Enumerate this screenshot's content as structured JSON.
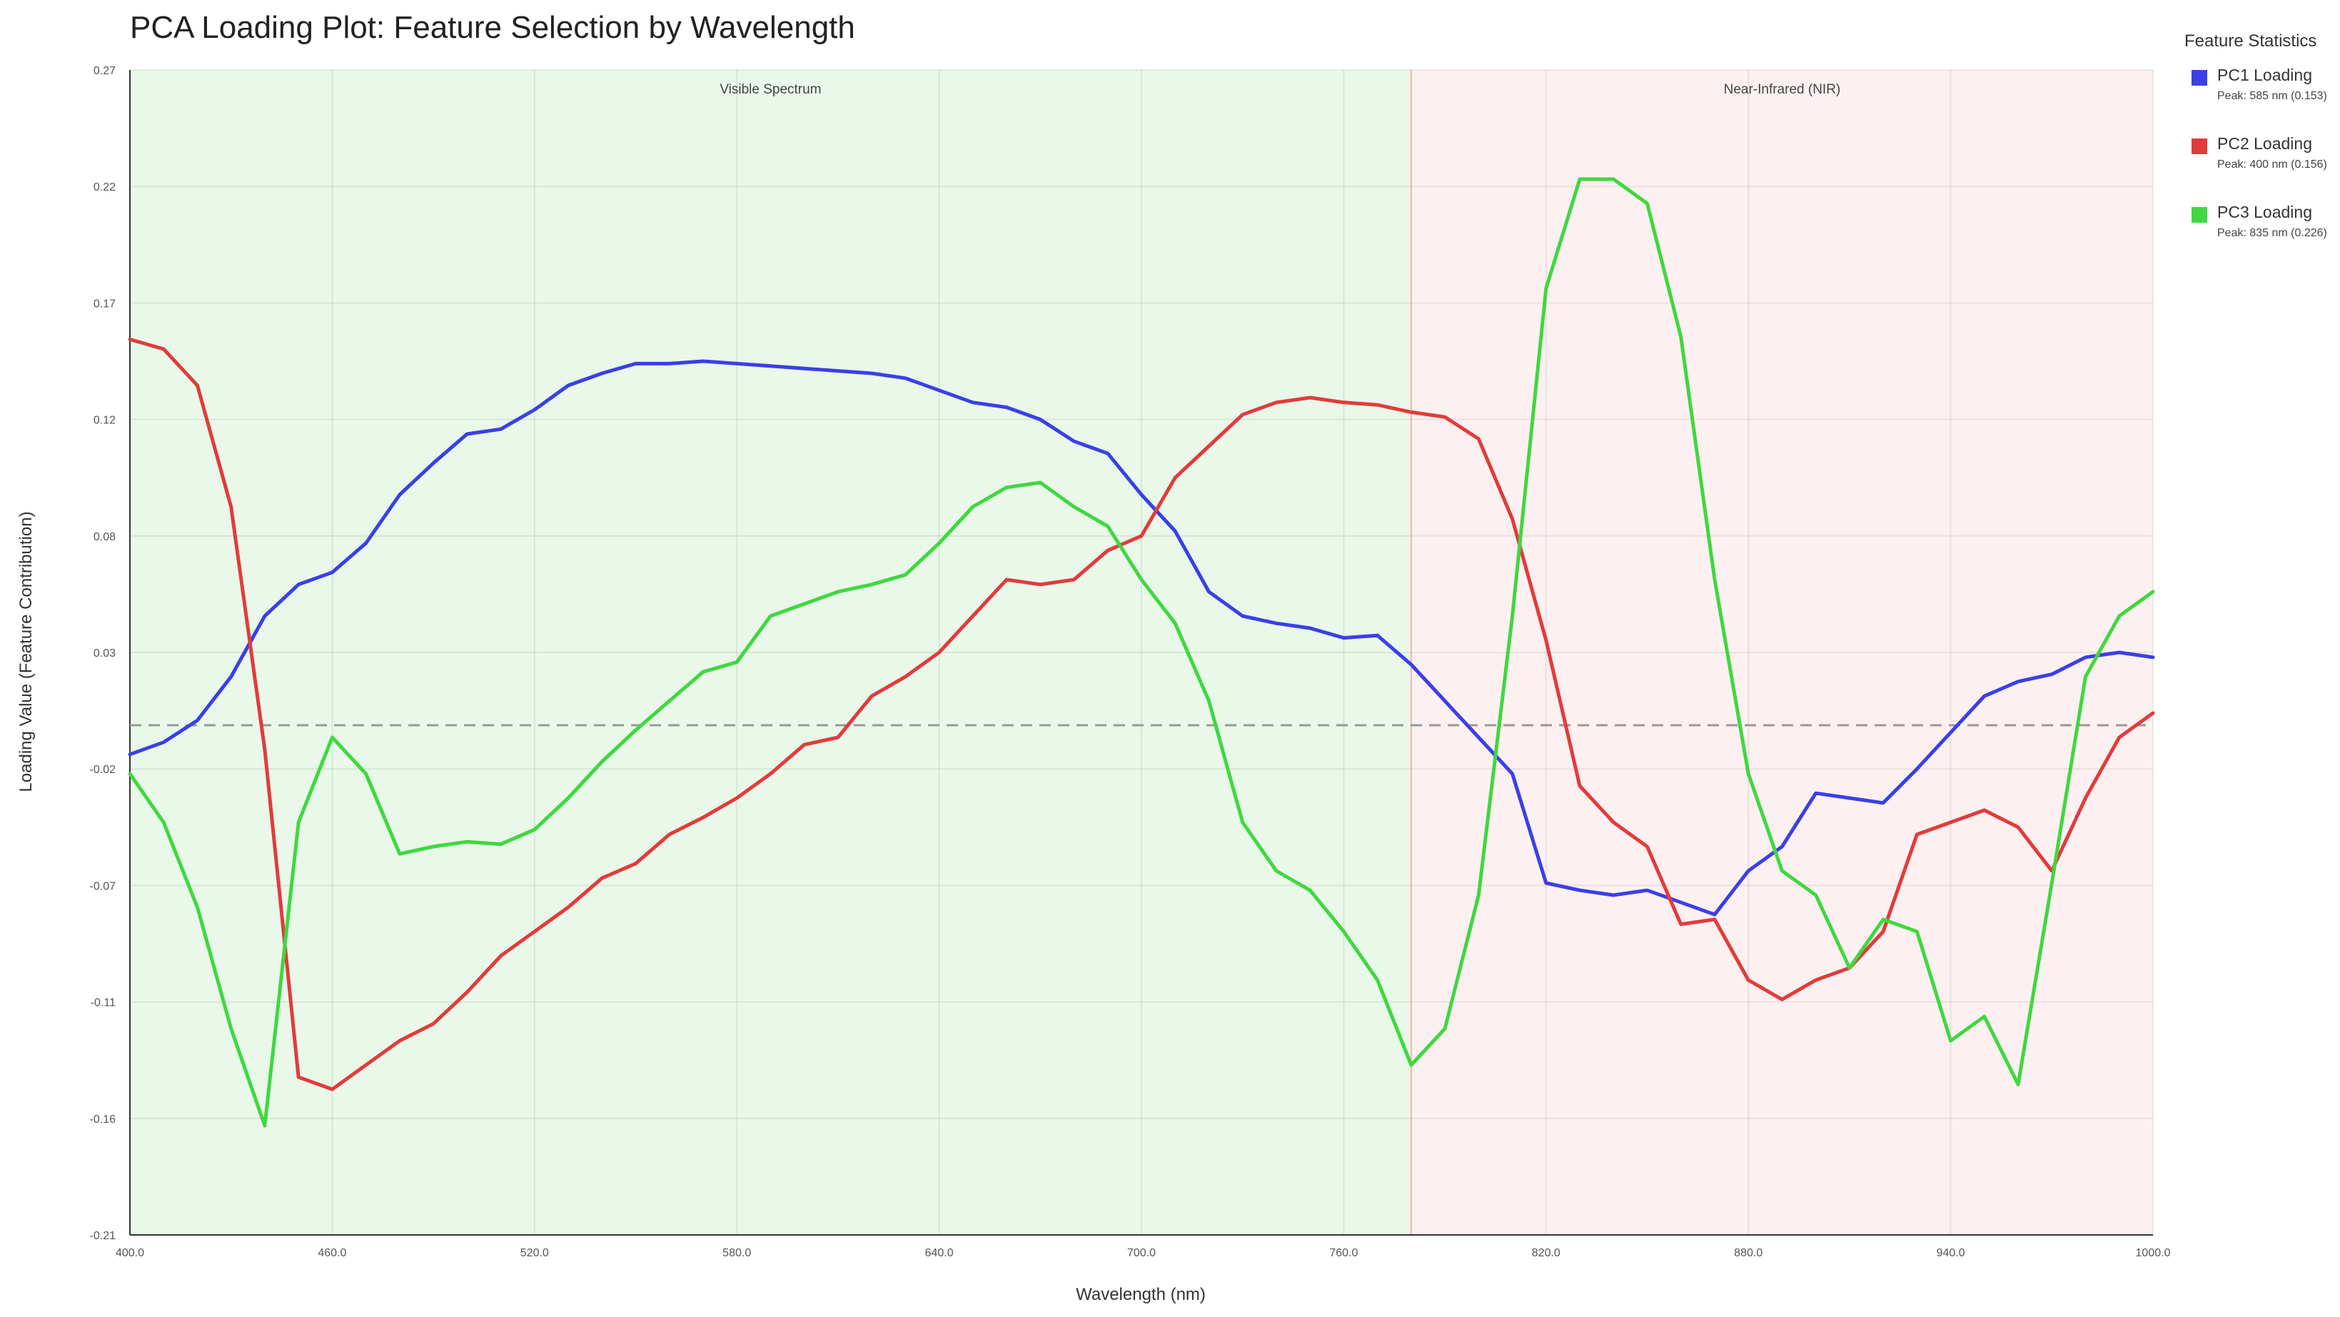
{
  "chart_data": {
    "type": "line",
    "title": "PCA Loading Plot: Feature Selection by Wavelength",
    "xlabel": "Wavelength (nm)",
    "ylabel": "Loading Value (Feature Contribution)",
    "xlim": [
      400,
      1000
    ],
    "ylim": [
      -0.21,
      0.27
    ],
    "x_ticks": [
      "400.0",
      "460.0",
      "520.0",
      "580.0",
      "640.0",
      "700.0",
      "760.0",
      "820.0",
      "880.0",
      "940.0",
      "1000.0"
    ],
    "y_ticks": [
      "0.27",
      "0.22",
      "0.17",
      "0.12",
      "0.08",
      "0.03",
      "-0.02",
      "-0.07",
      "-0.11",
      "-0.16",
      "-0.21"
    ],
    "grid": true,
    "legend_position": "right",
    "regions": [
      {
        "label": "Visible Spectrum",
        "x_start": 400,
        "x_end": 780,
        "color": "#e9f8e9"
      },
      {
        "label": "Near-Infrared (NIR)",
        "x_start": 780,
        "x_end": 1000,
        "color": "#fdf0f1"
      }
    ],
    "reference_line": {
      "y": 0.0,
      "style": "dashed"
    },
    "x": [
      400,
      410,
      420,
      430,
      440,
      450,
      460,
      470,
      480,
      490,
      500,
      510,
      520,
      530,
      540,
      550,
      560,
      570,
      580,
      590,
      600,
      610,
      620,
      630,
      640,
      650,
      660,
      670,
      680,
      690,
      700,
      710,
      720,
      730,
      740,
      750,
      760,
      770,
      780,
      790,
      800,
      810,
      820,
      830,
      840,
      850,
      860,
      870,
      880,
      890,
      900,
      910,
      920,
      930,
      940,
      950,
      960,
      970,
      980,
      990,
      1000
    ],
    "series": [
      {
        "name": "PC1 Loading",
        "color": "#3b3fe6",
        "values": [
          -0.012,
          -0.007,
          0.002,
          0.02,
          0.045,
          0.058,
          0.063,
          0.075,
          0.095,
          0.108,
          0.12,
          0.122,
          0.13,
          0.14,
          0.145,
          0.149,
          0.149,
          0.15,
          0.149,
          0.148,
          0.147,
          0.146,
          0.145,
          0.143,
          0.138,
          0.133,
          0.131,
          0.126,
          0.117,
          0.112,
          0.095,
          0.08,
          0.055,
          0.045,
          0.042,
          0.04,
          0.036,
          0.037,
          0.025,
          0.01,
          -0.005,
          -0.02,
          -0.065,
          -0.068,
          -0.07,
          -0.068,
          -0.073,
          -0.078,
          -0.06,
          -0.05,
          -0.028,
          -0.03,
          -0.032,
          -0.018,
          -0.003,
          0.012,
          0.018,
          0.021,
          0.028,
          0.03,
          0.028
        ]
      },
      {
        "name": "PC2 Loading",
        "color": "#e23b3b",
        "values": [
          0.159,
          0.155,
          0.14,
          0.09,
          -0.01,
          -0.145,
          -0.15,
          -0.14,
          -0.13,
          -0.123,
          -0.11,
          -0.095,
          -0.085,
          -0.075,
          -0.063,
          -0.057,
          -0.045,
          -0.038,
          -0.03,
          -0.02,
          -0.008,
          -0.005,
          0.012,
          0.02,
          0.03,
          0.045,
          0.06,
          0.058,
          0.06,
          0.072,
          0.078,
          0.102,
          0.115,
          0.128,
          0.133,
          0.135,
          0.133,
          0.132,
          0.129,
          0.127,
          0.118,
          0.085,
          0.035,
          -0.025,
          -0.04,
          -0.05,
          -0.082,
          -0.08,
          -0.105,
          -0.113,
          -0.105,
          -0.1,
          -0.085,
          -0.045,
          -0.04,
          -0.035,
          -0.042,
          -0.06,
          -0.03,
          -0.005,
          0.005
        ]
      },
      {
        "name": "PC3 Loading",
        "color": "#3fd83f",
        "values": [
          -0.02,
          -0.04,
          -0.075,
          -0.125,
          -0.165,
          -0.04,
          -0.005,
          -0.02,
          -0.053,
          -0.05,
          -0.048,
          -0.049,
          -0.043,
          -0.03,
          -0.015,
          -0.002,
          0.01,
          0.022,
          0.026,
          0.045,
          0.05,
          0.055,
          0.058,
          0.062,
          0.075,
          0.09,
          0.098,
          0.1,
          0.09,
          0.082,
          0.06,
          0.042,
          0.01,
          -0.04,
          -0.06,
          -0.068,
          -0.085,
          -0.105,
          -0.14,
          -0.125,
          -0.07,
          0.045,
          0.18,
          0.225,
          0.225,
          0.215,
          0.16,
          0.06,
          -0.02,
          -0.06,
          -0.07,
          -0.1,
          -0.08,
          -0.085,
          -0.13,
          -0.12,
          -0.148,
          -0.065,
          0.02,
          0.045,
          0.055
        ]
      }
    ]
  },
  "legend": {
    "title": "Feature Statistics",
    "items": [
      {
        "label": "PC1 Loading",
        "peak": "Peak: 585 nm (0.153)",
        "color": "#3b3fe6"
      },
      {
        "label": "PC2 Loading",
        "peak": "Peak: 400 nm (0.156)",
        "color": "#e23b3b"
      },
      {
        "label": "PC3 Loading",
        "peak": "Peak: 835 nm (0.226)",
        "color": "#3fd83f"
      }
    ]
  }
}
